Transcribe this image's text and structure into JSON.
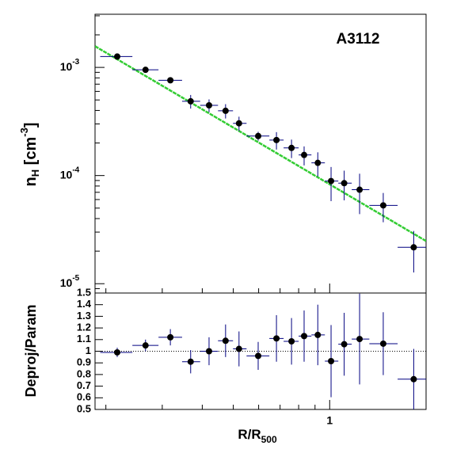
{
  "chart_data": [
    {
      "type": "scatter",
      "annotation": "A3112",
      "log_x": true,
      "log_y": true,
      "ylabel": {
        "base": "n",
        "sub": "H",
        "unit": " [cm",
        "sup": "-3",
        "close": "]"
      },
      "xlim": [
        0.185,
        2.0
      ],
      "ylim": [
        8.2e-06,
        0.0031
      ],
      "xticks": [
        1
      ],
      "xminor": [
        0.2,
        0.3,
        0.4,
        0.5,
        0.6,
        0.7,
        0.8,
        0.9,
        2
      ],
      "yticks": [
        {
          "value": 1e-05,
          "label": "10",
          "exponent": "-5"
        },
        {
          "value": 0.0001,
          "label": "10",
          "exponent": "-4"
        },
        {
          "value": 0.001,
          "label": "10",
          "exponent": "-3"
        }
      ],
      "yminor": [
        9e-06,
        2e-05,
        3e-05,
        4e-05,
        5e-05,
        6e-05,
        7e-05,
        8e-05,
        9e-05,
        0.0002,
        0.0003,
        0.0004,
        0.0005,
        0.0006,
        0.0007,
        0.0008,
        0.0009,
        0.002,
        0.003
      ],
      "x": [
        0.217,
        0.266,
        0.318,
        0.368,
        0.42,
        0.473,
        0.521,
        0.598,
        0.682,
        0.76,
        0.832,
        0.918,
        1.01,
        1.11,
        1.24,
        1.47,
        1.83
      ],
      "bins": [
        0.192,
        0.242,
        0.292,
        0.346,
        0.394,
        0.448,
        0.499,
        0.55,
        0.648,
        0.718,
        0.8,
        0.877,
        0.966,
        1.064,
        1.172,
        1.33,
        1.63,
        2.0
      ],
      "values": [
        0.00126,
        0.00095,
        0.00076,
        0.000486,
        0.000446,
        0.000397,
        0.000304,
        0.000232,
        0.000213,
        0.00018,
        0.000155,
        0.000131,
        8.9e-05,
        8.5e-05,
        7.4e-05,
        5.3e-05,
        2.17e-05
      ],
      "errors": [
        6e-05,
        5e-05,
        4e-05,
        7e-05,
        6e-05,
        6e-05,
        4.6e-05,
        2.2e-05,
        3.9e-05,
        3.5e-05,
        3.1e-05,
        3.3e-05,
        3.1e-05,
        2.6e-05,
        3e-05,
        1.6e-05,
        9e-06
      ],
      "color": "#000000",
      "error_color": "#000080",
      "fit": {
        "x": [
          0.185,
          2.0
        ],
        "values": [
          0.00157,
          2.48e-05
        ],
        "color": "#33cc33"
      }
    },
    {
      "type": "scatter",
      "ylabel": "Deproj/Param",
      "xlabel": {
        "text": "R/R",
        "sub": "500"
      },
      "ylim": [
        0.5,
        1.5
      ],
      "yticks": [
        0.5,
        0.6,
        0.7,
        0.8,
        0.9,
        1,
        1.1,
        1.2,
        1.3,
        1.4,
        1.5
      ],
      "xticks": [
        1
      ],
      "xminor": [
        0.2,
        0.3,
        0.4,
        0.5,
        0.6,
        0.7,
        0.8,
        0.9,
        2
      ],
      "values": [
        0.99,
        1.05,
        1.12,
        0.91,
        1.0,
        1.09,
        1.02,
        0.96,
        1.11,
        1.085,
        1.13,
        1.14,
        0.915,
        1.06,
        1.105,
        1.065,
        0.76
      ],
      "errors": [
        0.04,
        0.05,
        0.07,
        0.1,
        0.12,
        0.14,
        0.15,
        0.12,
        0.2,
        0.2,
        0.22,
        0.26,
        0.31,
        0.27,
        0.39,
        0.27,
        0.26
      ],
      "reference": 1,
      "color": "#000000",
      "error_color": "#000080"
    }
  ]
}
